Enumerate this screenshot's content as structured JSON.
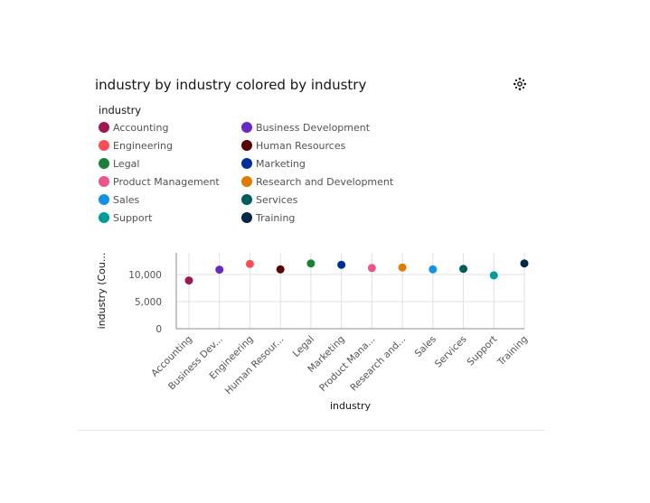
{
  "chart_data": {
    "type": "scatter",
    "title": "industry by industry colored by industry",
    "legend_title": "industry",
    "legend_placement": "top",
    "xlabel": "industry",
    "ylabel": "industry (Cou...",
    "y_ticks": [
      "0",
      "5,000",
      "10,000"
    ],
    "y_tick_values": [
      0,
      5000,
      10000
    ],
    "ylim": [
      0,
      14000
    ],
    "grid": true,
    "categories": [
      {
        "name": "Accounting",
        "tick": "Accounting",
        "value": 8900,
        "color": "#9f1853"
      },
      {
        "name": "Business Development",
        "tick": "Business Dev...",
        "value": 10900,
        "color": "#6929c4"
      },
      {
        "name": "Engineering",
        "tick": "Engineering",
        "value": 11950,
        "color": "#fa4d56"
      },
      {
        "name": "Human Resources",
        "tick": "Human Resour...",
        "value": 10950,
        "color": "#570408"
      },
      {
        "name": "Legal",
        "tick": "Legal",
        "value": 12050,
        "color": "#198038"
      },
      {
        "name": "Marketing",
        "tick": "Marketing",
        "value": 11800,
        "color": "#002d9c"
      },
      {
        "name": "Product Management",
        "tick": "Product Mana...",
        "value": 11200,
        "color": "#ee538b"
      },
      {
        "name": "Research and Development",
        "tick": "Research and...",
        "value": 11300,
        "color": "#e07a00"
      },
      {
        "name": "Sales",
        "tick": "Sales",
        "value": 10950,
        "color": "#1192e8"
      },
      {
        "name": "Services",
        "tick": "Services",
        "value": 11050,
        "color": "#005d5d"
      },
      {
        "name": "Support",
        "tick": "Support",
        "value": 9850,
        "color": "#009d9a"
      },
      {
        "name": "Training",
        "tick": "Training",
        "value": 12050,
        "color": "#012749"
      }
    ]
  },
  "toolbar": {
    "settings_icon": "settings-icon"
  }
}
